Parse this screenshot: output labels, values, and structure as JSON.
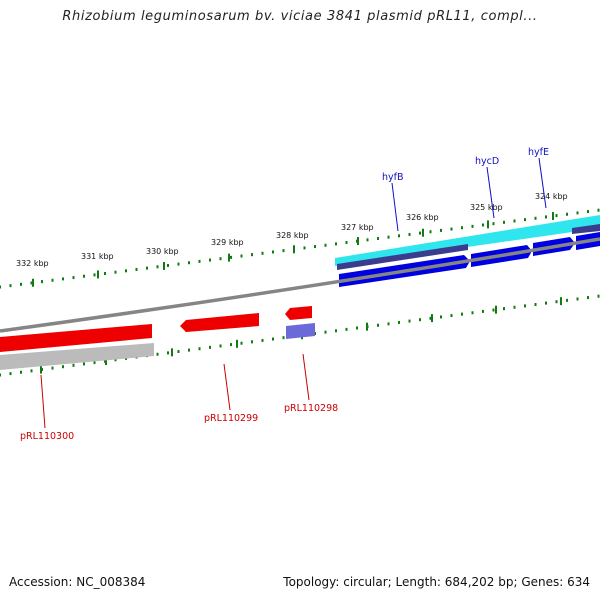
{
  "title": "Rhizobium leguminosarum bv. viciae 3841 plasmid pRL11, compl...",
  "footer": {
    "accession": "Accession: NC_008384",
    "summary": "Topology: circular; Length: 684,202 bp; Genes: 634"
  },
  "colors": {
    "backbone": "#858585",
    "tick": "#117a11",
    "forward_gene": "#0000e0",
    "forward_cds": "#2fe6ee",
    "forward_shadow": "#3c3c8e",
    "reverse_gene": "#ee0000",
    "reverse_shadow": "#bbbbbb",
    "reverse_other": "#6a6ad8",
    "forward_label": "#1010c0",
    "reverse_label": "#cc0000"
  },
  "ticks": {
    "labels": [
      "332 kbp",
      "331 kbp",
      "330 kbp",
      "329 kbp",
      "328 kbp",
      "327 kbp",
      "326 kbp",
      "325 kbp",
      "324 kbp"
    ]
  },
  "genes": {
    "forward_labels": [
      "hyfB",
      "hycD",
      "hyfE"
    ],
    "reverse_labels": [
      "pRL110300",
      "pRL110299",
      "pRL110298"
    ]
  }
}
